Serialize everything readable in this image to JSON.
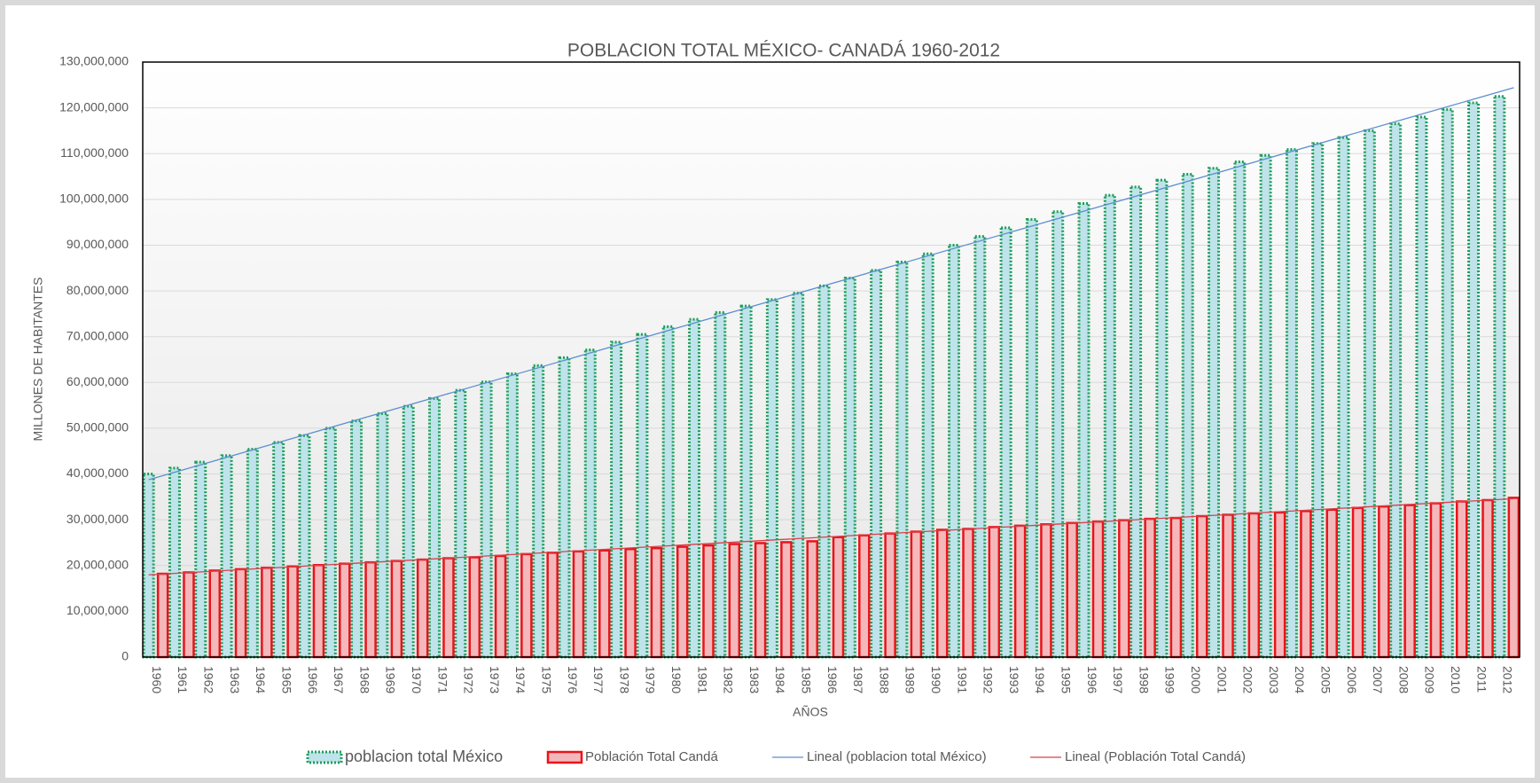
{
  "chart_data": {
    "type": "bar",
    "title": "POBLACION  TOTAL MÉXICO-  CANADÁ 1960-2012",
    "x_label": "AÑOS",
    "y_label": "MILLONES DE  HABITANTES",
    "categories": [
      "1960",
      "1961",
      "1962",
      "1963",
      "1964",
      "1965",
      "1966",
      "1967",
      "1968",
      "1969",
      "1970",
      "1971",
      "1972",
      "1973",
      "1974",
      "1975",
      "1976",
      "1977",
      "1978",
      "1979",
      "1980",
      "1981",
      "1982",
      "1983",
      "1984",
      "1985",
      "1986",
      "1987",
      "1988",
      "1989",
      "1990",
      "1991",
      "1992",
      "1993",
      "1994",
      "1995",
      "1996",
      "1997",
      "1998",
      "1999",
      "2000",
      "2001",
      "2002",
      "2003",
      "2004",
      "2005",
      "2006",
      "2007",
      "2008",
      "2009",
      "2010",
      "2011",
      "2012"
    ],
    "series": [
      {
        "name": "poblacion total México",
        "color": "#1e9e5a",
        "fill": "#bfe3ea",
        "values": [
          40000000,
          41300000,
          42600000,
          44000000,
          45400000,
          46900000,
          48400000,
          50000000,
          51600000,
          53200000,
          54800000,
          56500000,
          58300000,
          60100000,
          61900000,
          63700000,
          65400000,
          67100000,
          68800000,
          70500000,
          72200000,
          73800000,
          75300000,
          76700000,
          78100000,
          79500000,
          81100000,
          82800000,
          84500000,
          86300000,
          88100000,
          90000000,
          91900000,
          93800000,
          95600000,
          97300000,
          99100000,
          100900000,
          102700000,
          104200000,
          105500000,
          106800000,
          108200000,
          109600000,
          110900000,
          112200000,
          113500000,
          115000000,
          116500000,
          118000000,
          119600000,
          121100000,
          122500000
        ]
      },
      {
        "name": "Población Total Candá",
        "color": "#e8141b",
        "fill": "#f4b8bb",
        "values": [
          18200000,
          18500000,
          18900000,
          19200000,
          19500000,
          19800000,
          20100000,
          20400000,
          20700000,
          21000000,
          21300000,
          21600000,
          21800000,
          22100000,
          22500000,
          22800000,
          23100000,
          23300000,
          23600000,
          23800000,
          24100000,
          24400000,
          24700000,
          24900000,
          25100000,
          25300000,
          26200000,
          26600000,
          27000000,
          27400000,
          27800000,
          28000000,
          28400000,
          28700000,
          29000000,
          29300000,
          29600000,
          29900000,
          30200000,
          30400000,
          30800000,
          31100000,
          31400000,
          31600000,
          31900000,
          32200000,
          32600000,
          32900000,
          33200000,
          33600000,
          34000000,
          34300000,
          34800000
        ]
      }
    ],
    "trendlines": [
      {
        "name": "Lineal (poblacion total México)",
        "color": "#5b8fd0",
        "series": 0
      },
      {
        "name": "Lineal (Población Total Candá)",
        "color": "#d9404a",
        "series": 1
      }
    ],
    "ylim": [
      0,
      130000000
    ],
    "yticks": [
      0,
      {
        "value": 10000000,
        "label": "10,000,000"
      },
      {
        "value": 20000000,
        "label": "20,000,000"
      },
      {
        "value": 30000000,
        "label": "30,000,000"
      },
      {
        "value": 40000000,
        "label": "40,000,000"
      },
      {
        "value": 50000000,
        "label": "50,000,000"
      },
      {
        "value": 60000000,
        "label": "60,000,000"
      },
      {
        "value": 70000000,
        "label": "70,000,000"
      },
      {
        "value": 80000000,
        "label": "80,000,000"
      },
      {
        "value": 90000000,
        "label": "90,000,000"
      },
      {
        "value": 100000000,
        "label": "100,000,000"
      },
      {
        "value": 110000000,
        "label": "110,000,000"
      },
      {
        "value": 120000000,
        "label": "120,000,000"
      },
      {
        "value": 130000000,
        "label": "130,000,000"
      }
    ],
    "grid": true,
    "legend": "bottom"
  }
}
